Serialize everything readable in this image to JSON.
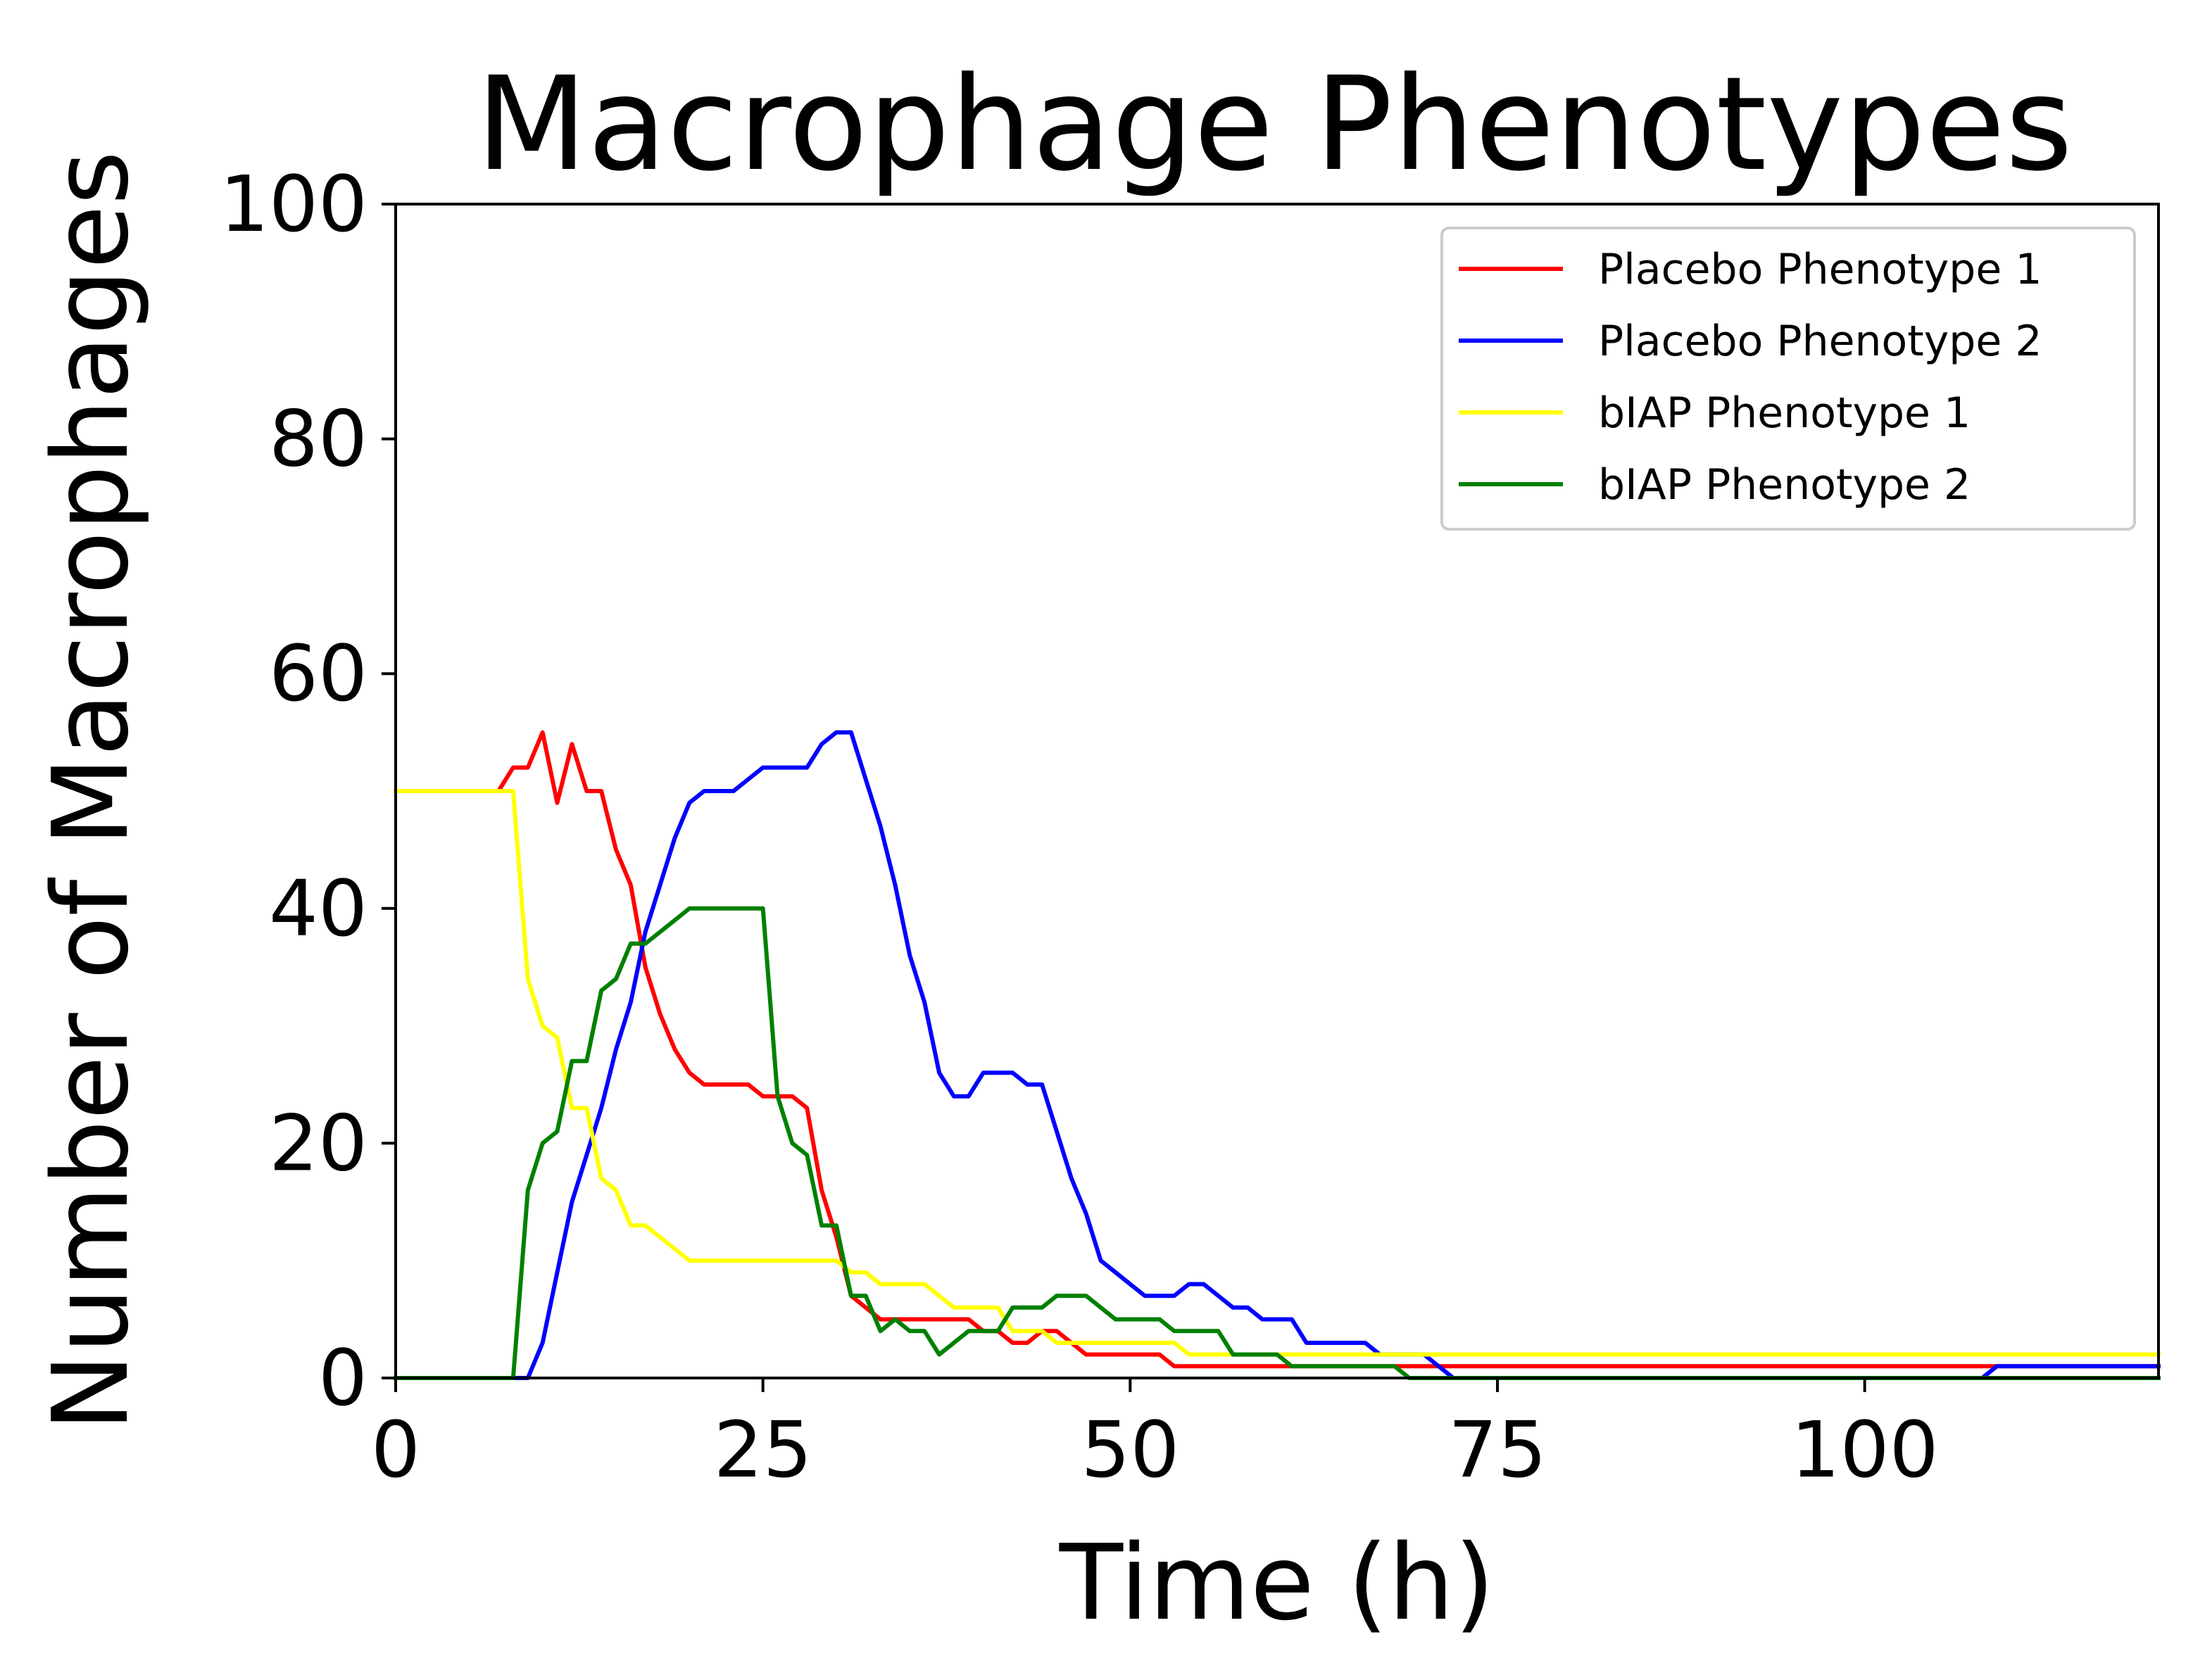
{
  "chart_data": {
    "type": "line",
    "title": "Macrophage Phenotypes",
    "xlabel": "Time (h)",
    "ylabel": "Number of Macrophages",
    "xlim": [
      0,
      120
    ],
    "ylim": [
      0,
      100
    ],
    "x_ticks": [
      0,
      25,
      50,
      75,
      100
    ],
    "y_ticks": [
      0,
      20,
      40,
      60,
      80,
      100
    ],
    "grid": false,
    "legend_position": "top-right",
    "series": [
      {
        "name": "Placebo Phenotype 1",
        "color": "#ff0000",
        "points": [
          [
            0,
            50
          ],
          [
            7,
            50
          ],
          [
            8,
            52
          ],
          [
            9,
            52
          ],
          [
            10,
            55
          ],
          [
            11,
            49
          ],
          [
            12,
            54
          ],
          [
            13,
            50
          ],
          [
            14,
            50
          ],
          [
            15,
            45
          ],
          [
            16,
            42
          ],
          [
            17,
            35
          ],
          [
            18,
            31
          ],
          [
            19,
            28
          ],
          [
            20,
            26
          ],
          [
            21,
            25
          ],
          [
            24,
            25
          ],
          [
            25,
            24
          ],
          [
            27,
            24
          ],
          [
            28,
            23
          ],
          [
            29,
            16
          ],
          [
            30,
            12
          ],
          [
            31,
            7
          ],
          [
            32,
            6
          ],
          [
            33,
            5
          ],
          [
            39,
            5
          ],
          [
            40,
            4
          ],
          [
            41,
            4
          ],
          [
            42,
            3
          ],
          [
            43,
            3
          ],
          [
            44,
            4
          ],
          [
            45,
            4
          ],
          [
            46,
            3
          ],
          [
            47,
            2
          ],
          [
            52,
            2
          ],
          [
            53,
            1
          ],
          [
            54,
            1
          ],
          [
            120,
            1
          ]
        ]
      },
      {
        "name": "Placebo Phenotype 2",
        "color": "#0000ff",
        "points": [
          [
            0,
            0
          ],
          [
            9,
            0
          ],
          [
            10,
            3
          ],
          [
            11,
            9
          ],
          [
            12,
            15
          ],
          [
            13,
            19
          ],
          [
            14,
            23
          ],
          [
            15,
            28
          ],
          [
            16,
            32
          ],
          [
            17,
            38
          ],
          [
            18,
            42
          ],
          [
            19,
            46
          ],
          [
            20,
            49
          ],
          [
            21,
            50
          ],
          [
            23,
            50
          ],
          [
            24,
            51
          ],
          [
            25,
            52
          ],
          [
            28,
            52
          ],
          [
            29,
            54
          ],
          [
            30,
            55
          ],
          [
            31,
            55
          ],
          [
            32,
            51
          ],
          [
            33,
            47
          ],
          [
            34,
            42
          ],
          [
            35,
            36
          ],
          [
            36,
            32
          ],
          [
            37,
            26
          ],
          [
            38,
            24
          ],
          [
            39,
            24
          ],
          [
            40,
            26
          ],
          [
            42,
            26
          ],
          [
            43,
            25
          ],
          [
            44,
            25
          ],
          [
            45,
            21
          ],
          [
            46,
            17
          ],
          [
            47,
            14
          ],
          [
            48,
            10
          ],
          [
            49,
            9
          ],
          [
            50,
            8
          ],
          [
            51,
            7
          ],
          [
            53,
            7
          ],
          [
            54,
            8
          ],
          [
            55,
            8
          ],
          [
            56,
            7
          ],
          [
            57,
            6
          ],
          [
            58,
            6
          ],
          [
            59,
            5
          ],
          [
            61,
            5
          ],
          [
            62,
            3
          ],
          [
            66,
            3
          ],
          [
            67,
            2
          ],
          [
            70,
            2
          ],
          [
            71,
            1
          ],
          [
            72,
            0
          ],
          [
            108,
            0
          ],
          [
            109,
            1
          ],
          [
            120,
            1
          ]
        ]
      },
      {
        "name": "bIAP Phenotype 1",
        "color": "#ffff00",
        "points": [
          [
            0,
            50
          ],
          [
            8,
            50
          ],
          [
            9,
            34
          ],
          [
            10,
            30
          ],
          [
            11,
            29
          ],
          [
            12,
            23
          ],
          [
            13,
            23
          ],
          [
            14,
            17
          ],
          [
            15,
            16
          ],
          [
            16,
            13
          ],
          [
            17,
            13
          ],
          [
            18,
            12
          ],
          [
            19,
            11
          ],
          [
            20,
            10
          ],
          [
            30,
            10
          ],
          [
            31,
            9
          ],
          [
            32,
            9
          ],
          [
            33,
            8
          ],
          [
            36,
            8
          ],
          [
            37,
            7
          ],
          [
            38,
            6
          ],
          [
            41,
            6
          ],
          [
            42,
            4
          ],
          [
            44,
            4
          ],
          [
            45,
            3
          ],
          [
            53,
            3
          ],
          [
            54,
            2
          ],
          [
            120,
            2
          ]
        ]
      },
      {
        "name": "bIAP Phenotype 2",
        "color": "#008000",
        "points": [
          [
            0,
            0
          ],
          [
            8,
            0
          ],
          [
            9,
            16
          ],
          [
            10,
            20
          ],
          [
            11,
            21
          ],
          [
            12,
            27
          ],
          [
            13,
            27
          ],
          [
            14,
            33
          ],
          [
            15,
            34
          ],
          [
            16,
            37
          ],
          [
            17,
            37
          ],
          [
            18,
            38
          ],
          [
            19,
            39
          ],
          [
            20,
            40
          ],
          [
            25,
            40
          ],
          [
            26,
            24
          ],
          [
            27,
            20
          ],
          [
            28,
            19
          ],
          [
            29,
            13
          ],
          [
            30,
            13
          ],
          [
            31,
            7
          ],
          [
            32,
            7
          ],
          [
            33,
            4
          ],
          [
            34,
            5
          ],
          [
            35,
            4
          ],
          [
            36,
            4
          ],
          [
            37,
            2
          ],
          [
            38,
            3
          ],
          [
            39,
            4
          ],
          [
            41,
            4
          ],
          [
            42,
            6
          ],
          [
            44,
            6
          ],
          [
            45,
            7
          ],
          [
            47,
            7
          ],
          [
            48,
            6
          ],
          [
            49,
            5
          ],
          [
            52,
            5
          ],
          [
            53,
            4
          ],
          [
            56,
            4
          ],
          [
            57,
            2
          ],
          [
            60,
            2
          ],
          [
            61,
            1
          ],
          [
            68,
            1
          ],
          [
            69,
            0
          ],
          [
            120,
            0
          ]
        ]
      }
    ]
  }
}
